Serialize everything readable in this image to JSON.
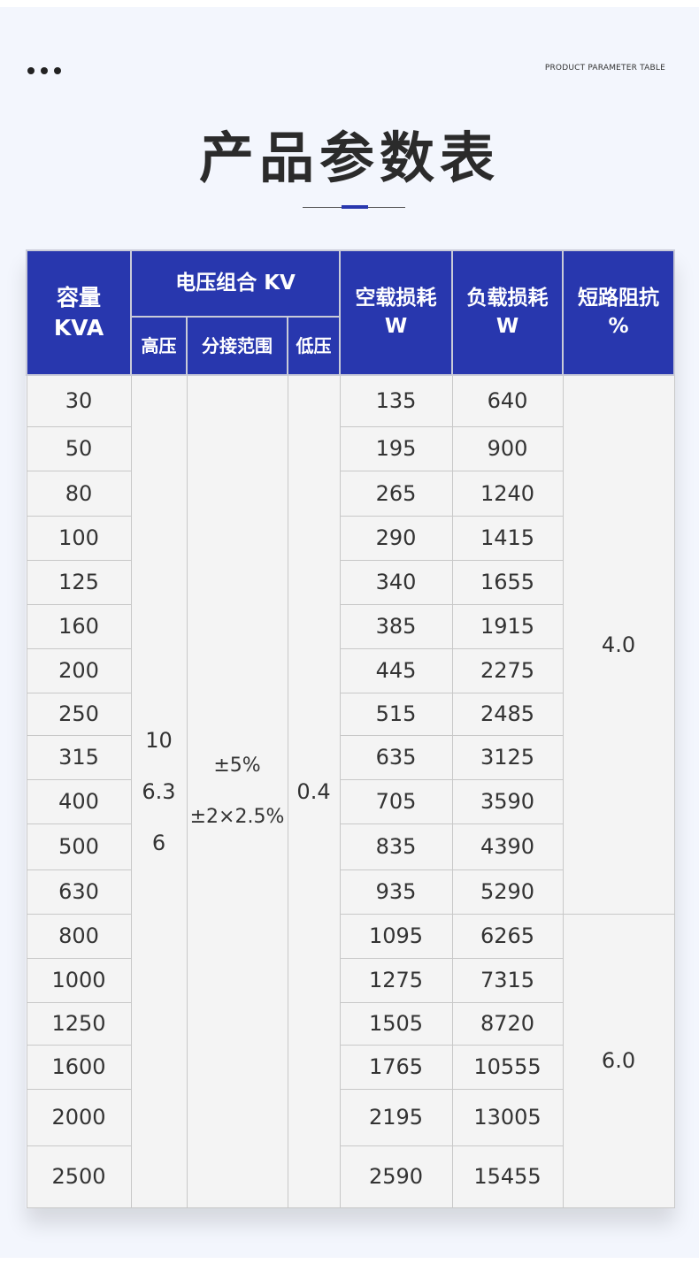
{
  "header": {
    "label_en": "PRODUCT PARAMETER TABLE",
    "title": "产品参数表",
    "accent_color": "#2837ae"
  },
  "table": {
    "columns": {
      "capacity": "容量",
      "capacity_unit": "KVA",
      "voltage_group": "电压组合 KV",
      "hv": "高压",
      "tap": "分接范围",
      "lv": "低压",
      "noload": "空载损耗",
      "noload_unit": "W",
      "load": "负载损耗",
      "load_unit": "W",
      "impedance": "短路阻抗",
      "impedance_unit": "%"
    },
    "hv_values": [
      "10",
      "6.3",
      "6"
    ],
    "tap_values": [
      "±5%",
      "±2×2.5%"
    ],
    "lv_value": "0.4",
    "impedance_groups": [
      "4.0",
      "6.0"
    ],
    "rows": [
      {
        "capacity": "30",
        "noload": "135",
        "load": "640"
      },
      {
        "capacity": "50",
        "noload": "195",
        "load": "900"
      },
      {
        "capacity": "80",
        "noload": "265",
        "load": "1240"
      },
      {
        "capacity": "100",
        "noload": "290",
        "load": "1415"
      },
      {
        "capacity": "125",
        "noload": "340",
        "load": "1655"
      },
      {
        "capacity": "160",
        "noload": "385",
        "load": "1915"
      },
      {
        "capacity": "200",
        "noload": "445",
        "load": "2275"
      },
      {
        "capacity": "250",
        "noload": "515",
        "load": "2485"
      },
      {
        "capacity": "315",
        "noload": "635",
        "load": "3125"
      },
      {
        "capacity": "400",
        "noload": "705",
        "load": "3590"
      },
      {
        "capacity": "500",
        "noload": "835",
        "load": "4390"
      },
      {
        "capacity": "630",
        "noload": "935",
        "load": "5290"
      },
      {
        "capacity": "800",
        "noload": "1095",
        "load": "6265"
      },
      {
        "capacity": "1000",
        "noload": "1275",
        "load": "7315"
      },
      {
        "capacity": "1250",
        "noload": "1505",
        "load": "8720"
      },
      {
        "capacity": "1600",
        "noload": "1765",
        "load": "10555"
      },
      {
        "capacity": "2000",
        "noload": "2195",
        "load": "13005"
      },
      {
        "capacity": "2500",
        "noload": "2590",
        "load": "15455"
      }
    ]
  }
}
